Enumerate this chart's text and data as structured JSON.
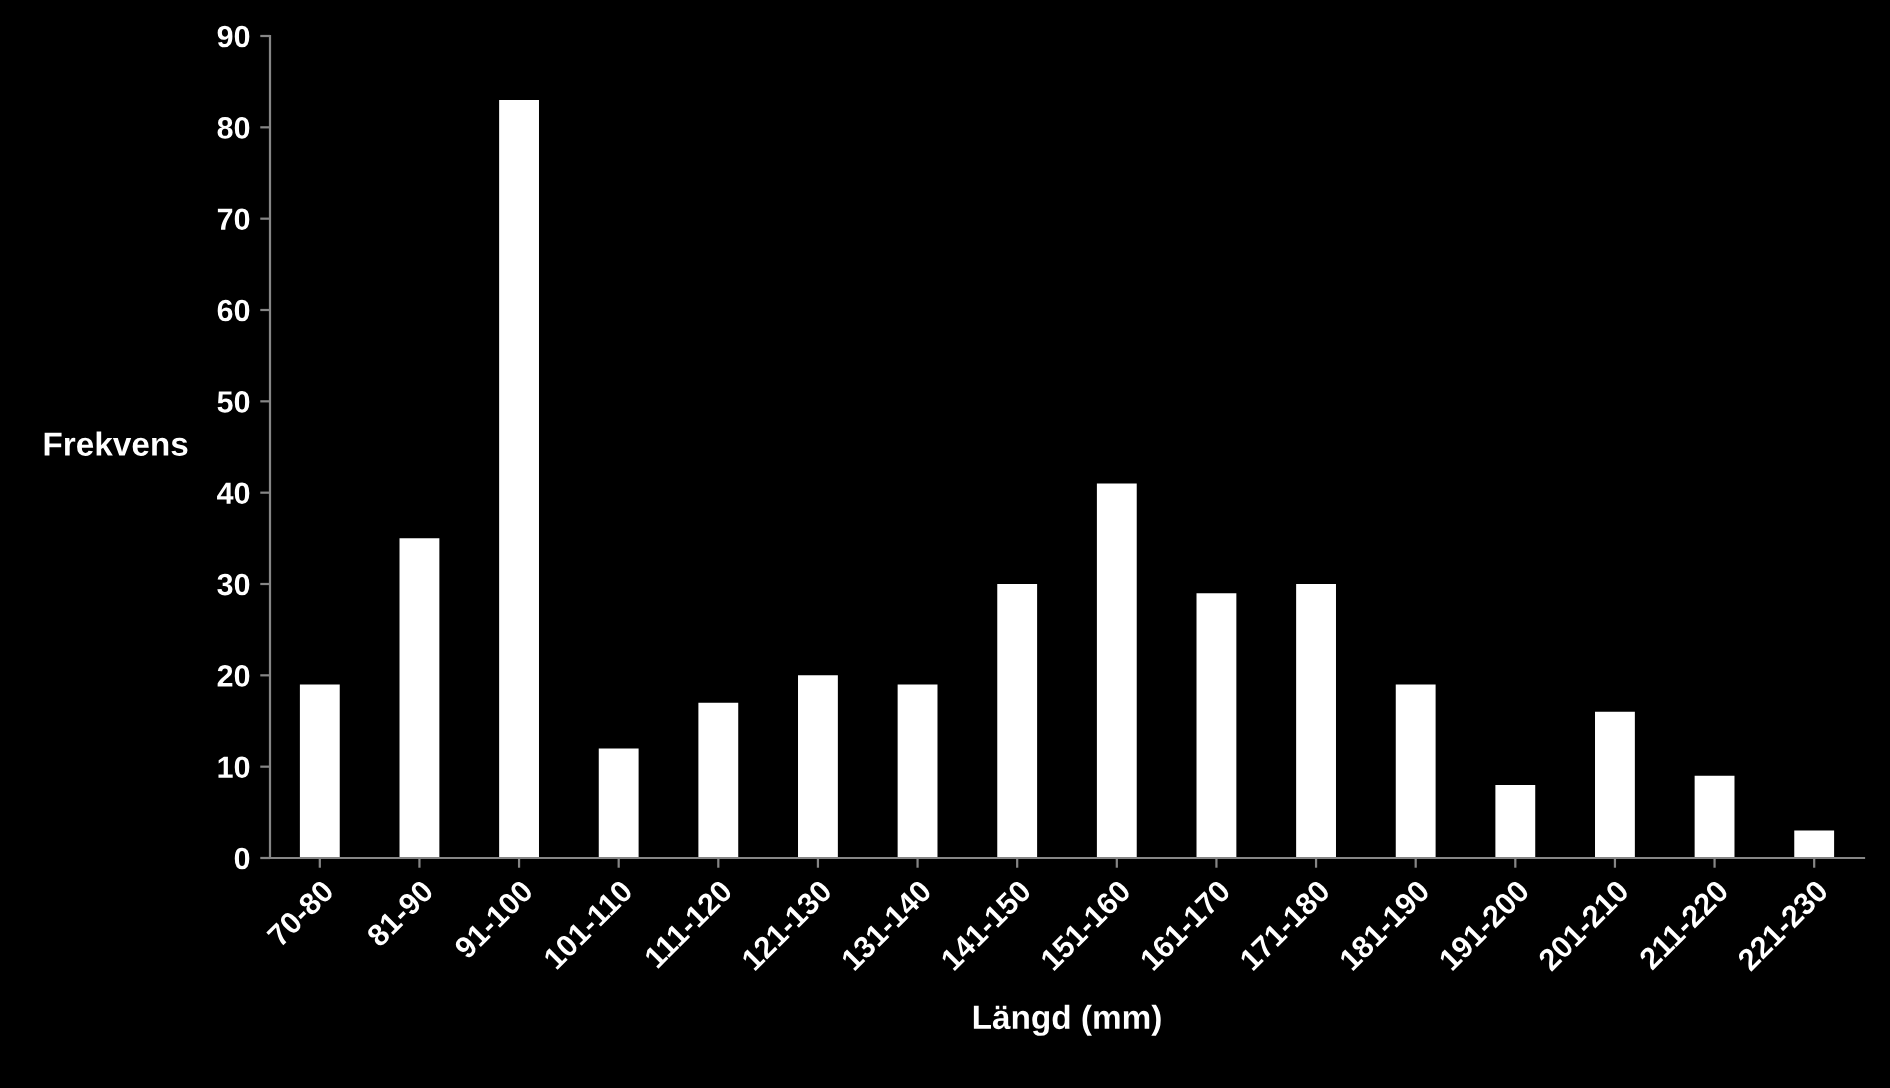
{
  "chart_data": {
    "type": "bar",
    "xlabel": "Längd (mm)",
    "ylabel": "Frekvens",
    "categories": [
      "70-80",
      "81-90",
      "91-100",
      "101-110",
      "111-120",
      "121-130",
      "131-140",
      "141-150",
      "151-160",
      "161-170",
      "171-180",
      "181-190",
      "191-200",
      "201-210",
      "211-220",
      "221-230"
    ],
    "values": [
      19,
      35,
      83,
      12,
      17,
      20,
      19,
      30,
      41,
      29,
      30,
      19,
      8,
      16,
      9,
      3
    ],
    "color": "#ffffff",
    "ylim": [
      0,
      90
    ],
    "yticks": [
      0,
      10,
      20,
      30,
      40,
      50,
      60,
      70,
      80,
      90
    ],
    "grid": false,
    "legend": false
  }
}
